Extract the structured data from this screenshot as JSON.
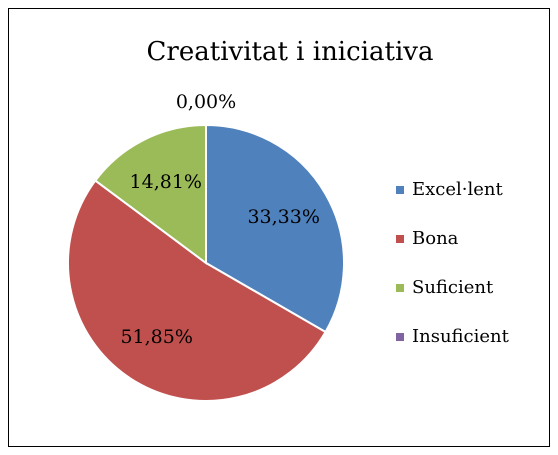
{
  "chart_data": {
    "type": "pie",
    "title": "Creativitat i iniciativa",
    "categories": [
      "Excel·lent",
      "Bona",
      "Suficient",
      "Insuficient"
    ],
    "values": [
      33.33,
      51.85,
      14.81,
      0
    ],
    "value_labels": [
      "33,33%",
      "51,85%",
      "14,81%",
      "0,00%"
    ],
    "colors": [
      "#4f81bd",
      "#c0504d",
      "#9bbb59",
      "#8064a2"
    ],
    "legend": "right"
  }
}
